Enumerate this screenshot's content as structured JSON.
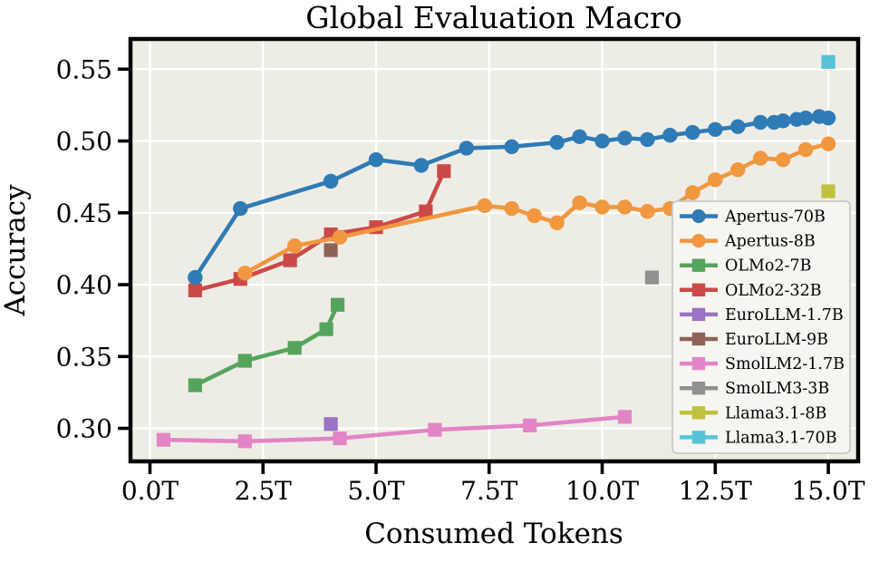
{
  "page": {
    "background": "#ffffff",
    "plot_bg_color": "#EEEDE5",
    "grid_color": "#FFFFFF",
    "spine_color": "#000000"
  },
  "chart_data": {
    "type": "line",
    "title": "Global Evaluation Macro",
    "xlabel": "Consumed Tokens",
    "ylabel": "Accuracy",
    "xlim": [
      -0.43,
      15.66
    ],
    "ylim": [
      0.277,
      0.571
    ],
    "grid": true,
    "legend_position": "lower right",
    "x_ticks": {
      "values": [
        0,
        2.5,
        5,
        7.5,
        10,
        12.5,
        15
      ],
      "labels": [
        "0.0T",
        "2.5T",
        "5.0T",
        "7.5T",
        "10.0T",
        "12.5T",
        "15.0T"
      ]
    },
    "y_ticks": {
      "values": [
        0.3,
        0.35,
        0.4,
        0.45,
        0.5,
        0.55
      ],
      "labels": [
        "0.30",
        "0.35",
        "0.40",
        "0.45",
        "0.50",
        "0.55"
      ]
    },
    "series": [
      {
        "name": "Apertus-70B",
        "color": "#2F7BB5",
        "marker": "circle",
        "x": [
          1.0,
          2.0,
          4.0,
          5.0,
          6.0,
          7.0,
          8.0,
          9.0,
          9.5,
          10.0,
          10.5,
          11.0,
          11.5,
          12.0,
          12.5,
          13.0,
          13.5,
          13.8,
          14.0,
          14.3,
          14.5,
          14.8,
          15.0
        ],
        "y": [
          0.405,
          0.453,
          0.472,
          0.487,
          0.483,
          0.495,
          0.496,
          0.499,
          0.503,
          0.5,
          0.502,
          0.501,
          0.504,
          0.506,
          0.508,
          0.51,
          0.513,
          0.513,
          0.514,
          0.515,
          0.516,
          0.517,
          0.516
        ]
      },
      {
        "name": "Apertus-8B",
        "color": "#F0973F",
        "marker": "circle",
        "x": [
          2.1,
          3.2,
          4.2,
          7.4,
          8.0,
          8.5,
          9.0,
          9.5,
          10.0,
          10.5,
          11.0,
          11.5,
          12.0,
          12.5,
          13.0,
          13.5,
          14.0,
          14.5,
          15.0
        ],
        "y": [
          0.408,
          0.427,
          0.433,
          0.455,
          0.453,
          0.448,
          0.443,
          0.457,
          0.454,
          0.454,
          0.451,
          0.453,
          0.464,
          0.473,
          0.48,
          0.488,
          0.487,
          0.494,
          0.498
        ]
      },
      {
        "name": "OLMo2-7B",
        "color": "#55A45C",
        "marker": "square",
        "x": [
          1.0,
          2.1,
          3.2,
          3.9,
          4.15
        ],
        "y": [
          0.33,
          0.347,
          0.356,
          0.369,
          0.386
        ]
      },
      {
        "name": "OLMo2-32B",
        "color": "#CB4A47",
        "marker": "square",
        "x": [
          1.0,
          2.0,
          3.1,
          4.0,
          5.0,
          6.1,
          6.5
        ],
        "y": [
          0.396,
          0.404,
          0.417,
          0.435,
          0.44,
          0.451,
          0.479
        ]
      },
      {
        "name": "EuroLLM-1.7B",
        "color": "#9A73C2",
        "marker": "square",
        "x": [
          4.0
        ],
        "y": [
          0.303
        ]
      },
      {
        "name": "EuroLLM-9B",
        "color": "#8E6257",
        "marker": "square",
        "x": [
          4.0
        ],
        "y": [
          0.424
        ]
      },
      {
        "name": "SmolLM2-1.7B",
        "color": "#E285C6",
        "marker": "square",
        "x": [
          0.3,
          2.1,
          4.2,
          6.3,
          8.4,
          10.5
        ],
        "y": [
          0.292,
          0.291,
          0.293,
          0.299,
          0.302,
          0.308
        ]
      },
      {
        "name": "SmolLM3-3B",
        "color": "#909090",
        "marker": "square",
        "x": [
          11.1
        ],
        "y": [
          0.405
        ]
      },
      {
        "name": "Llama3.1-8B",
        "color": "#C0C13E",
        "marker": "square",
        "x": [
          15.0
        ],
        "y": [
          0.465
        ]
      },
      {
        "name": "Llama3.1-70B",
        "color": "#56C3D8",
        "marker": "square",
        "x": [
          15.0
        ],
        "y": [
          0.555
        ]
      }
    ]
  }
}
